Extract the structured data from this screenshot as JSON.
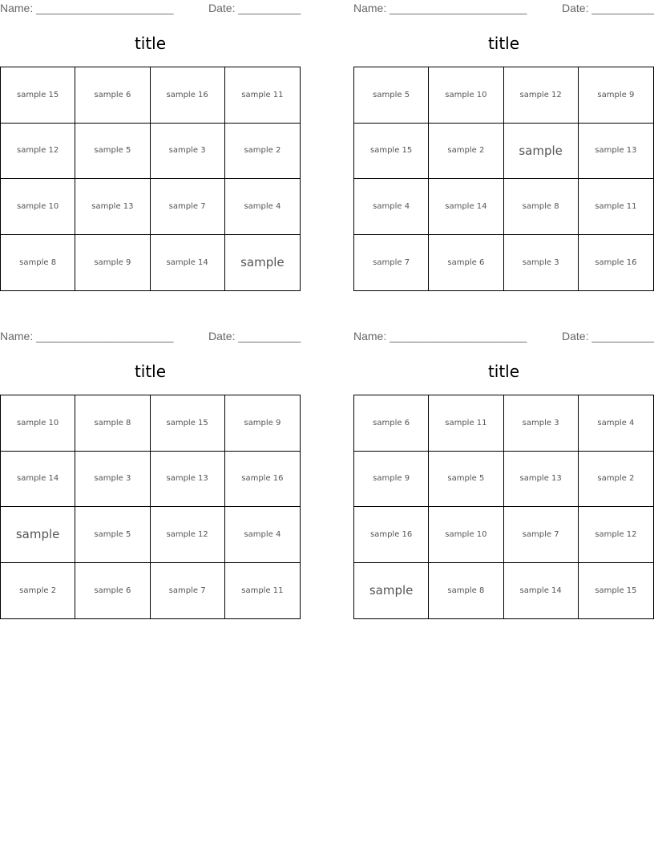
{
  "name_label": "Name: ______________________",
  "date_label": "Date: __________",
  "cards": [
    {
      "title": "title",
      "cells": [
        "sample 15",
        "sample 6",
        "sample 16",
        "sample 11",
        "sample 12",
        "sample 5",
        "sample 3",
        "sample 2",
        "sample 10",
        "sample 13",
        "sample 7",
        "sample 4",
        "sample 8",
        "sample 9",
        "sample 14",
        "sample"
      ]
    },
    {
      "title": "title",
      "cells": [
        "sample 5",
        "sample 10",
        "sample 12",
        "sample 9",
        "sample 15",
        "sample 2",
        "sample",
        "sample 13",
        "sample 4",
        "sample 14",
        "sample 8",
        "sample 11",
        "sample 7",
        "sample 6",
        "sample 3",
        "sample 16"
      ]
    },
    {
      "title": "title",
      "cells": [
        "sample 10",
        "sample 8",
        "sample 15",
        "sample 9",
        "sample 14",
        "sample 3",
        "sample 13",
        "sample 16",
        "sample",
        "sample 5",
        "sample 12",
        "sample 4",
        "sample 2",
        "sample 6",
        "sample 7",
        "sample 11"
      ]
    },
    {
      "title": "title",
      "cells": [
        "sample 6",
        "sample 11",
        "sample 3",
        "sample 4",
        "sample 9",
        "sample 5",
        "sample 13",
        "sample 2",
        "sample 16",
        "sample 10",
        "sample 7",
        "sample 12",
        "sample",
        "sample 8",
        "sample 14",
        "sample 15"
      ]
    }
  ]
}
